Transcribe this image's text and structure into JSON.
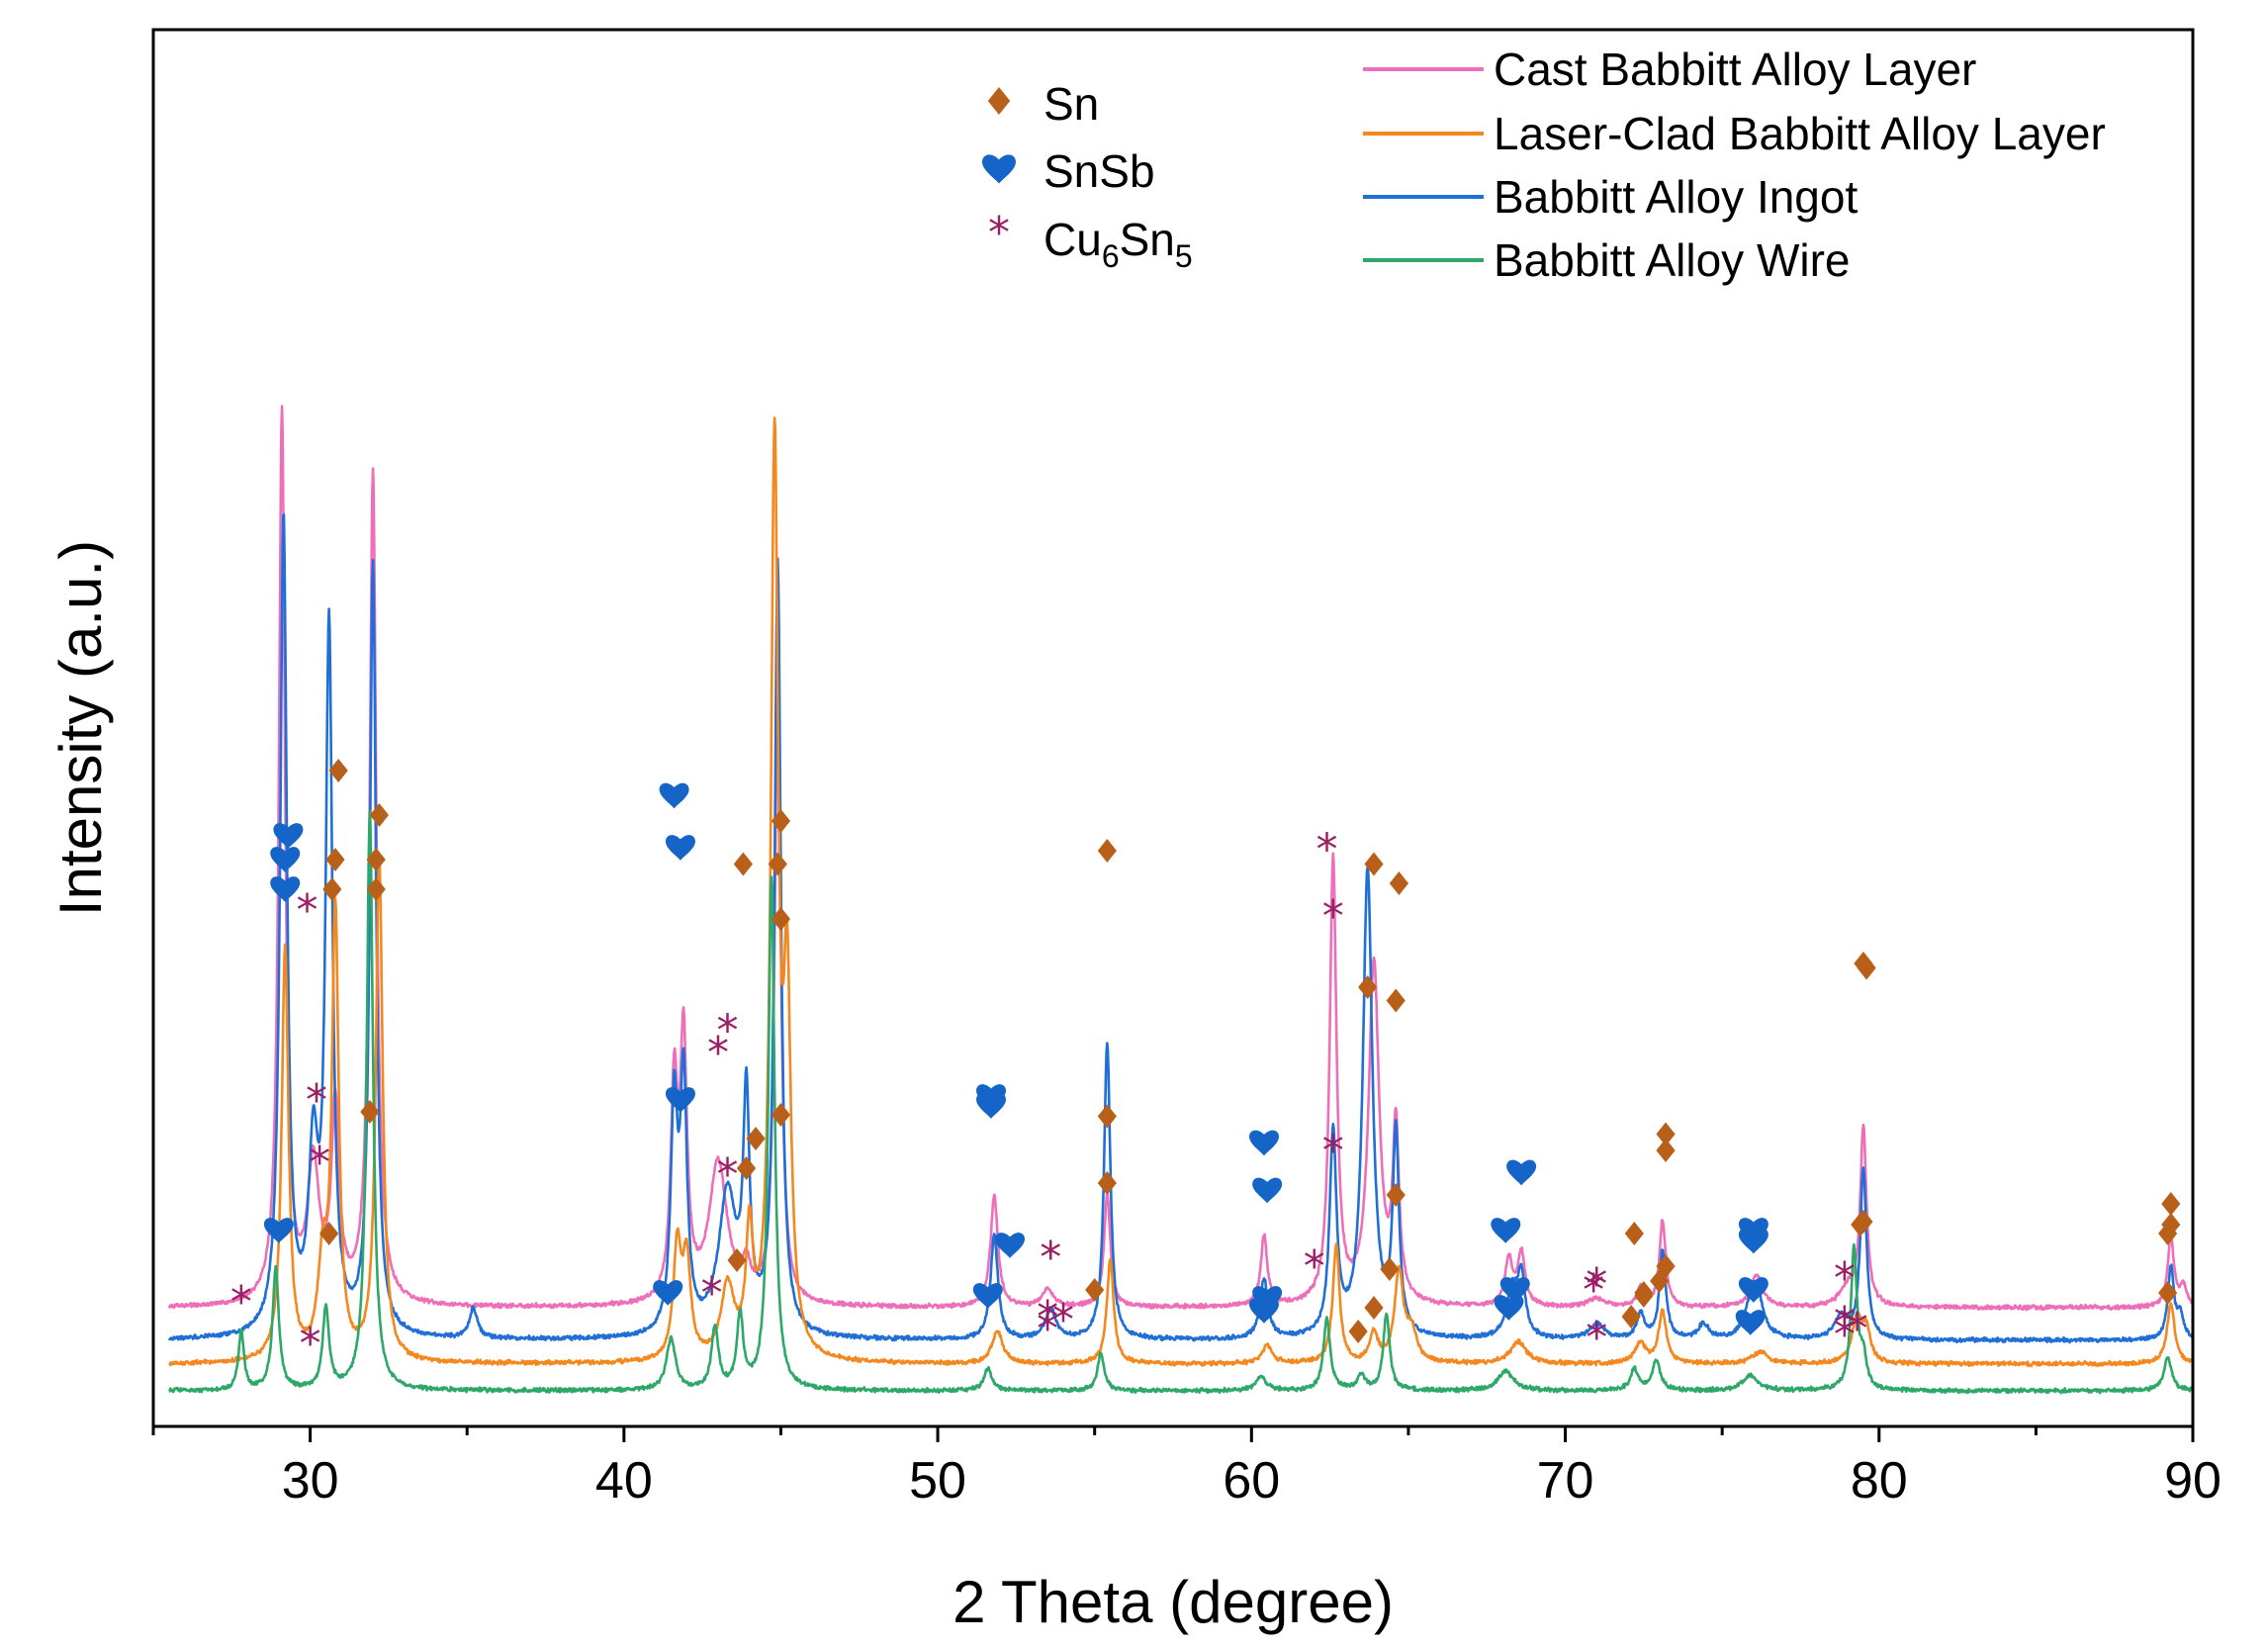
{
  "chart_data": {
    "type": "line",
    "title": "",
    "xlabel": "2 Theta (degree)",
    "ylabel": "Intensity (a.u.)",
    "xlim": [
      25,
      90
    ],
    "xticks": [
      30,
      40,
      50,
      60,
      70,
      80,
      90
    ],
    "tick_labels": [
      "30",
      "40",
      "50",
      "60",
      "70",
      "80",
      "90"
    ],
    "grid": false,
    "colors": {
      "Sn": "#b8601a",
      "SnSb": "#1565c9",
      "Cu6Sn5": "#9b1f66"
    },
    "phase_legend": [
      {
        "key": "Sn",
        "label": "Sn",
        "symbol": "diamond-icon"
      },
      {
        "key": "SnSb",
        "label": "SnSb",
        "symbol": "heart-icon"
      },
      {
        "key": "Cu6Sn5",
        "label_main": "Cu",
        "sub1": "6",
        "label_mid": "Sn",
        "sub2": "5",
        "symbol": "asterisk-icon"
      }
    ],
    "series": [
      {
        "name": "Cast Babbitt Alloy Layer",
        "color": "#ee6fb8",
        "offset": 58,
        "peaks": [
          [
            29.1,
            600,
            0.12
          ],
          [
            30.1,
            92,
            0.22
          ],
          [
            30.8,
            130,
            0.15
          ],
          [
            32.0,
            560,
            0.13
          ],
          [
            41.6,
            140,
            0.13
          ],
          [
            41.9,
            170,
            0.13
          ],
          [
            43.0,
            95,
            0.35
          ],
          [
            43.9,
            20,
            0.15
          ],
          [
            44.9,
            410,
            0.12
          ],
          [
            51.8,
            75,
            0.14
          ],
          [
            53.5,
            12,
            0.2
          ],
          [
            55.4,
            76,
            0.12
          ],
          [
            60.4,
            48,
            0.12
          ],
          [
            62.6,
            300,
            0.13
          ],
          [
            63.9,
            230,
            0.2
          ],
          [
            64.6,
            116,
            0.12
          ],
          [
            68.2,
            32,
            0.14
          ],
          [
            68.6,
            36,
            0.14
          ],
          [
            71.0,
            6,
            0.3
          ],
          [
            72.4,
            13,
            0.13
          ],
          [
            73.1,
            58,
            0.12
          ],
          [
            76.1,
            22,
            0.22
          ],
          [
            79.0,
            12,
            0.3
          ],
          [
            79.5,
            120,
            0.12
          ],
          [
            89.3,
            48,
            0.12
          ],
          [
            89.7,
            14,
            0.12
          ]
        ],
        "markers": [
          [
            29.2,
            "SnSb",
            340
          ],
          [
            30.7,
            "Sn",
            340
          ],
          [
            32.1,
            "Sn",
            340
          ],
          [
            41.8,
            "SnSb",
            368
          ],
          [
            30.2,
            "Cu6Sn5",
            196
          ],
          [
            43.0,
            "Cu6Sn5",
            228
          ],
          [
            43.9,
            "Sn",
            152
          ],
          [
            45.0,
            "Sn",
            320
          ],
          [
            51.7,
            "SnSb",
            200
          ],
          [
            53.5,
            "Cu6Sn5",
            50
          ],
          [
            55.4,
            "Sn",
            187
          ],
          [
            60.5,
            "SnSb",
            137
          ],
          [
            62.6,
            "Cu6Sn5",
            320
          ],
          [
            63.7,
            "Sn",
            274
          ],
          [
            64.6,
            "Sn",
            265
          ],
          [
            68.1,
            "SnSb",
            110
          ],
          [
            70.9,
            "Cu6Sn5",
            68
          ],
          [
            72.5,
            "Sn",
            68
          ],
          [
            73.2,
            "Sn",
            164
          ],
          [
            76.0,
            "SnSb",
            110
          ],
          [
            78.9,
            "Cu6Sn5",
            46
          ],
          [
            79.6,
            "Sn",
            287
          ],
          [
            89.3,
            "Sn",
            114
          ]
        ]
      },
      {
        "name": "Babbitt Alloy Ingot",
        "color": "#1f6fd6",
        "offset": 36,
        "peaks": [
          [
            29.15,
            550,
            0.13
          ],
          [
            30.1,
            115,
            0.18
          ],
          [
            30.6,
            470,
            0.13
          ],
          [
            32.0,
            520,
            0.12
          ],
          [
            35.2,
            20,
            0.15
          ],
          [
            41.6,
            150,
            0.13
          ],
          [
            41.9,
            165,
            0.13
          ],
          [
            43.3,
            95,
            0.35
          ],
          [
            43.9,
            150,
            0.12
          ],
          [
            44.9,
            520,
            0.12
          ],
          [
            51.8,
            70,
            0.14
          ],
          [
            53.6,
            20,
            0.2
          ],
          [
            55.4,
            200,
            0.12
          ],
          [
            60.4,
            40,
            0.15
          ],
          [
            62.6,
            137,
            0.13
          ],
          [
            63.7,
            315,
            0.18
          ],
          [
            64.6,
            135,
            0.12
          ],
          [
            68.3,
            32,
            0.2
          ],
          [
            68.6,
            40,
            0.15
          ],
          [
            71.0,
            10,
            0.3
          ],
          [
            72.4,
            17,
            0.14
          ],
          [
            73.1,
            60,
            0.12
          ],
          [
            74.4,
            10,
            0.2
          ],
          [
            75.9,
            15,
            0.2
          ],
          [
            76.1,
            30,
            0.25
          ],
          [
            78.8,
            15,
            0.25
          ],
          [
            79.5,
            115,
            0.12
          ],
          [
            89.3,
            48,
            0.12
          ],
          [
            89.6,
            16,
            0.12
          ]
        ],
        "markers": [
          [
            29.2,
            "SnSb",
            360
          ],
          [
            30.8,
            "Sn",
            360
          ],
          [
            32.1,
            "Sn",
            360
          ],
          [
            41.6,
            "SnSb",
            403
          ],
          [
            29.9,
            "Cu6Sn5",
            324
          ],
          [
            43.3,
            "Cu6Sn5",
            243
          ],
          [
            43.8,
            "Sn",
            357
          ],
          [
            44.9,
            "Sn",
            357
          ],
          [
            51.7,
            "SnSb",
            194
          ],
          [
            53.6,
            "Cu6Sn5",
            90
          ],
          [
            55.4,
            "Sn",
            366
          ],
          [
            60.4,
            "SnSb",
            169
          ],
          [
            62.4,
            "Cu6Sn5",
            365
          ],
          [
            63.9,
            "Sn",
            357
          ],
          [
            64.7,
            "Sn",
            344
          ],
          [
            68.6,
            "SnSb",
            149
          ],
          [
            71.0,
            "Cu6Sn5",
            72
          ],
          [
            72.2,
            "Sn",
            108
          ],
          [
            73.2,
            "Sn",
            175
          ],
          [
            76.0,
            "SnSb",
            103
          ],
          [
            78.9,
            "Cu6Sn5",
            76
          ],
          [
            79.5,
            "Sn",
            290
          ],
          [
            89.3,
            "Sn",
            128
          ]
        ]
      },
      {
        "name": "Laser-Clad Babbitt Alloy Layer",
        "color": "#f5871f",
        "offset": 20,
        "peaks": [
          [
            29.2,
            278,
            0.13
          ],
          [
            30.4,
            60,
            0.18
          ],
          [
            30.8,
            300,
            0.13
          ],
          [
            32.2,
            340,
            0.13
          ],
          [
            41.7,
            75,
            0.15
          ],
          [
            42.0,
            65,
            0.15
          ],
          [
            43.3,
            48,
            0.25
          ],
          [
            44.0,
            80,
            0.13
          ],
          [
            44.8,
            610,
            0.14
          ],
          [
            45.2,
            230,
            0.14
          ],
          [
            51.9,
            22,
            0.2
          ],
          [
            55.5,
            70,
            0.13
          ],
          [
            60.5,
            12,
            0.2
          ],
          [
            62.7,
            80,
            0.13
          ],
          [
            63.9,
            20,
            0.15
          ],
          [
            64.7,
            60,
            0.17
          ],
          [
            65.1,
            20,
            0.2
          ],
          [
            68.5,
            15,
            0.3
          ],
          [
            72.4,
            14,
            0.2
          ],
          [
            73.1,
            35,
            0.15
          ],
          [
            76.2,
            8,
            0.3
          ],
          [
            79.3,
            30,
            0.2
          ],
          [
            79.6,
            20,
            0.15
          ],
          [
            89.3,
            40,
            0.15
          ]
        ],
        "markers": [
          [
            29.3,
            "SnSb",
            376
          ],
          [
            30.9,
            "Sn",
            420
          ],
          [
            32.2,
            "Sn",
            390
          ],
          [
            41.8,
            "SnSb",
            198
          ],
          [
            30.3,
            "Cu6Sn5",
            154
          ],
          [
            43.3,
            "Cu6Sn5",
            146
          ],
          [
            44.2,
            "Sn",
            172
          ],
          [
            45.0,
            "Sn",
            386
          ],
          [
            52.3,
            "SnSb",
            100
          ],
          [
            54.0,
            "Cu6Sn5",
            48
          ],
          [
            55.4,
            "Sn",
            142
          ],
          [
            60.5,
            "SnSb",
            64
          ],
          [
            62.6,
            "Cu6Sn5",
            162
          ],
          [
            63.9,
            "Sn",
            58
          ],
          [
            64.6,
            "Sn",
            134
          ],
          [
            68.4,
            "SnSb",
            70
          ],
          [
            71.0,
            "Cu6Sn5",
            36
          ],
          [
            72.5,
            "Sn",
            66
          ],
          [
            73.2,
            "Sn",
            86
          ],
          [
            76.0,
            "SnSb",
            70
          ],
          [
            79.3,
            "Cu6Sn5",
            42
          ],
          [
            79.5,
            "Sn",
            116
          ],
          [
            89.2,
            "Sn",
            108
          ]
        ]
      },
      {
        "name": "Babbitt Alloy Wire",
        "color": "#2ea868",
        "offset": 2,
        "peaks": [
          [
            27.8,
            40,
            0.1
          ],
          [
            28.9,
            82,
            0.12
          ],
          [
            30.5,
            55,
            0.12
          ],
          [
            31.9,
            390,
            0.12
          ],
          [
            41.5,
            35,
            0.17
          ],
          [
            42.9,
            42,
            0.13
          ],
          [
            43.7,
            50,
            0.12
          ],
          [
            44.7,
            345,
            0.12
          ],
          [
            51.6,
            15,
            0.15
          ],
          [
            55.2,
            25,
            0.13
          ],
          [
            60.3,
            9,
            0.2
          ],
          [
            62.4,
            48,
            0.13
          ],
          [
            63.5,
            10,
            0.15
          ],
          [
            64.3,
            52,
            0.12
          ],
          [
            68.1,
            13,
            0.3
          ],
          [
            72.2,
            14,
            0.15
          ],
          [
            72.9,
            20,
            0.15
          ],
          [
            75.9,
            10,
            0.3
          ],
          [
            79.2,
            95,
            0.12
          ],
          [
            79.5,
            20,
            0.12
          ],
          [
            89.2,
            22,
            0.15
          ]
        ],
        "markers": [
          [
            27.8,
            "Cu6Sn5",
            60
          ],
          [
            29.0,
            "SnSb",
            110
          ],
          [
            30.0,
            "Cu6Sn5",
            32
          ],
          [
            30.6,
            "Sn",
            108
          ],
          [
            31.9,
            "Sn",
            190
          ],
          [
            41.4,
            "SnSb",
            68
          ],
          [
            42.8,
            "Cu6Sn5",
            66
          ],
          [
            43.6,
            "Sn",
            90
          ],
          [
            45.0,
            "Sn",
            188
          ],
          [
            51.6,
            "SnSb",
            66
          ],
          [
            53.5,
            "Cu6Sn5",
            42
          ],
          [
            55.0,
            "Sn",
            70
          ],
          [
            60.4,
            "SnSb",
            56
          ],
          [
            62.0,
            "Cu6Sn5",
            84
          ],
          [
            63.4,
            "Sn",
            42
          ],
          [
            64.4,
            "Sn",
            84
          ],
          [
            68.2,
            "SnSb",
            58
          ],
          [
            72.1,
            "Sn",
            52
          ],
          [
            73.0,
            "Sn",
            76
          ],
          [
            75.9,
            "SnSb",
            48
          ],
          [
            78.9,
            "Cu6Sn5",
            38
          ],
          [
            79.4,
            "Sn",
            114
          ],
          [
            89.2,
            "Sn",
            68
          ]
        ]
      }
    ]
  }
}
